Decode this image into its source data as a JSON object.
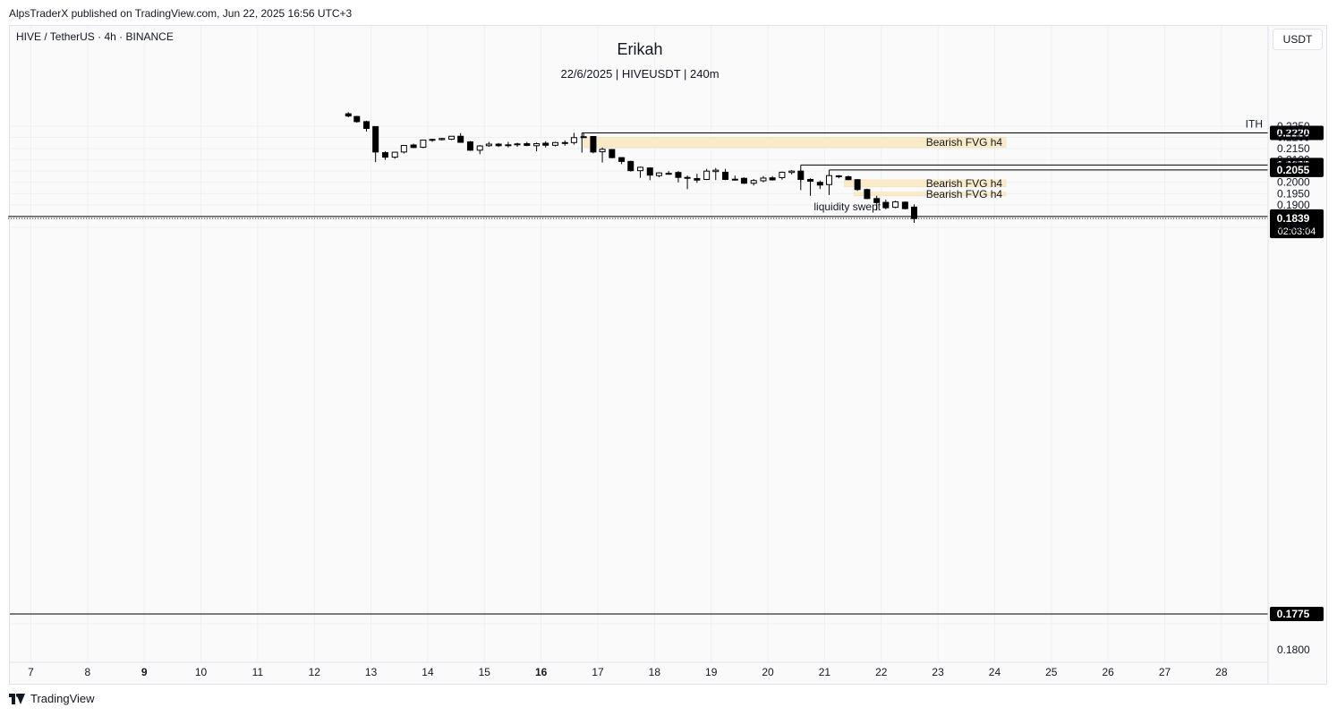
{
  "header": {
    "published_text": "AlpsTraderX published on TradingView.com, Jun 22, 2025 16:56 UTC+3"
  },
  "symbol_info": "HIVE / TetherUS · 4h · BINANCE",
  "chart_title": "Erikah",
  "chart_subtitle": "22/6/2025 | HIVEUSDT | 240m",
  "currency_button": "USDT",
  "footer": {
    "brand": "TradingView"
  },
  "colors": {
    "up_fill": "#ffffff",
    "down_fill": "#000000",
    "wick": "#000000",
    "fvg_fill": "#faebc8",
    "label_bg": "#000000"
  },
  "chart_data": {
    "type": "candlestick",
    "x_axis": {
      "ticks": [
        {
          "label": "7",
          "day": 7,
          "bold": false
        },
        {
          "label": "8",
          "day": 8,
          "bold": false
        },
        {
          "label": "9",
          "day": 9,
          "bold": true
        },
        {
          "label": "10",
          "day": 10,
          "bold": false
        },
        {
          "label": "11",
          "day": 11,
          "bold": false
        },
        {
          "label": "12",
          "day": 12,
          "bold": false
        },
        {
          "label": "13",
          "day": 13,
          "bold": false
        },
        {
          "label": "14",
          "day": 14,
          "bold": false
        },
        {
          "label": "15",
          "day": 15,
          "bold": false
        },
        {
          "label": "16",
          "day": 16,
          "bold": true
        },
        {
          "label": "17",
          "day": 17,
          "bold": false
        },
        {
          "label": "18",
          "day": 18,
          "bold": false
        },
        {
          "label": "19",
          "day": 19,
          "bold": false
        },
        {
          "label": "20",
          "day": 20,
          "bold": false
        },
        {
          "label": "21",
          "day": 21,
          "bold": false
        },
        {
          "label": "22",
          "day": 22,
          "bold": false
        },
        {
          "label": "23",
          "day": 23,
          "bold": false
        },
        {
          "label": "24",
          "day": 24,
          "bold": false
        },
        {
          "label": "25",
          "day": 25,
          "bold": false
        },
        {
          "label": "26",
          "day": 26,
          "bold": false
        },
        {
          "label": "27",
          "day": 27,
          "bold": false
        },
        {
          "label": "28",
          "day": 28,
          "bold": false
        }
      ]
    },
    "y_axis": {
      "upper_ticks": [
        {
          "label": "0.2250",
          "value": 0.225
        },
        {
          "label": "0.2200",
          "value": 0.22
        },
        {
          "label": "0.2150",
          "value": 0.215
        },
        {
          "label": "0.2100",
          "value": 0.21
        },
        {
          "label": "0.2000",
          "value": 0.2
        },
        {
          "label": "0.1950",
          "value": 0.195
        },
        {
          "label": "0.1900",
          "value": 0.19
        },
        {
          "label": "0.1800",
          "value": 0.18
        }
      ],
      "break_tick": {
        "label": "0.1800"
      },
      "grid": true
    },
    "candles": [
      {
        "day": 12.6,
        "o": 0.2305,
        "h": 0.2312,
        "l": 0.229,
        "c": 0.2295
      },
      {
        "day": 12.75,
        "o": 0.2293,
        "h": 0.2296,
        "l": 0.2265,
        "c": 0.227
      },
      {
        "day": 12.92,
        "o": 0.227,
        "h": 0.2274,
        "l": 0.2226,
        "c": 0.224
      },
      {
        "day": 13.08,
        "o": 0.2248,
        "h": 0.225,
        "l": 0.209,
        "c": 0.2135
      },
      {
        "day": 13.25,
        "o": 0.2132,
        "h": 0.2138,
        "l": 0.21,
        "c": 0.2112
      },
      {
        "day": 13.42,
        "o": 0.2112,
        "h": 0.2136,
        "l": 0.2105,
        "c": 0.2134
      },
      {
        "day": 13.58,
        "o": 0.2135,
        "h": 0.2166,
        "l": 0.2128,
        "c": 0.2164
      },
      {
        "day": 13.75,
        "o": 0.2166,
        "h": 0.2172,
        "l": 0.2152,
        "c": 0.2155
      },
      {
        "day": 13.92,
        "o": 0.2156,
        "h": 0.219,
        "l": 0.2152,
        "c": 0.2188
      },
      {
        "day": 14.08,
        "o": 0.2187,
        "h": 0.2194,
        "l": 0.218,
        "c": 0.2191
      },
      {
        "day": 14.25,
        "o": 0.219,
        "h": 0.2198,
        "l": 0.2186,
        "c": 0.2195
      },
      {
        "day": 14.42,
        "o": 0.2192,
        "h": 0.2204,
        "l": 0.2188,
        "c": 0.2205
      },
      {
        "day": 14.58,
        "o": 0.2205,
        "h": 0.2219,
        "l": 0.2176,
        "c": 0.2178
      },
      {
        "day": 14.75,
        "o": 0.218,
        "h": 0.2184,
        "l": 0.214,
        "c": 0.2143
      },
      {
        "day": 14.92,
        "o": 0.2143,
        "h": 0.2166,
        "l": 0.2125,
        "c": 0.2162
      },
      {
        "day": 15.08,
        "o": 0.2163,
        "h": 0.218,
        "l": 0.2158,
        "c": 0.217
      },
      {
        "day": 15.25,
        "o": 0.217,
        "h": 0.2175,
        "l": 0.2157,
        "c": 0.2163
      },
      {
        "day": 15.42,
        "o": 0.2163,
        "h": 0.218,
        "l": 0.2155,
        "c": 0.2167
      },
      {
        "day": 15.58,
        "o": 0.2167,
        "h": 0.2176,
        "l": 0.2158,
        "c": 0.2171
      },
      {
        "day": 15.75,
        "o": 0.2172,
        "h": 0.218,
        "l": 0.2161,
        "c": 0.2164
      },
      {
        "day": 15.92,
        "o": 0.2163,
        "h": 0.2177,
        "l": 0.2138,
        "c": 0.2172
      },
      {
        "day": 16.08,
        "o": 0.2174,
        "h": 0.2183,
        "l": 0.2155,
        "c": 0.2165
      },
      {
        "day": 16.25,
        "o": 0.2165,
        "h": 0.218,
        "l": 0.216,
        "c": 0.2177
      },
      {
        "day": 16.42,
        "o": 0.2176,
        "h": 0.2187,
        "l": 0.2163,
        "c": 0.2177
      },
      {
        "day": 16.58,
        "o": 0.2177,
        "h": 0.222,
        "l": 0.2168,
        "c": 0.2199
      },
      {
        "day": 16.75,
        "o": 0.2199,
        "h": 0.222,
        "l": 0.2198,
        "c": 0.2203
      },
      {
        "day": 16.92,
        "o": 0.2204,
        "h": 0.2206,
        "l": 0.2129,
        "c": 0.2135
      },
      {
        "day": 17.08,
        "o": 0.2136,
        "h": 0.2155,
        "l": 0.2088,
        "c": 0.2147
      },
      {
        "day": 17.25,
        "o": 0.2146,
        "h": 0.2148,
        "l": 0.2107,
        "c": 0.211
      },
      {
        "day": 17.42,
        "o": 0.211,
        "h": 0.2112,
        "l": 0.2081,
        "c": 0.2093
      },
      {
        "day": 17.58,
        "o": 0.2093,
        "h": 0.2096,
        "l": 0.2048,
        "c": 0.2052
      },
      {
        "day": 17.75,
        "o": 0.2052,
        "h": 0.207,
        "l": 0.202,
        "c": 0.2067
      },
      {
        "day": 17.92,
        "o": 0.2064,
        "h": 0.2067,
        "l": 0.201,
        "c": 0.2032
      },
      {
        "day": 18.08,
        "o": 0.203,
        "h": 0.2045,
        "l": 0.2023,
        "c": 0.2042
      },
      {
        "day": 18.25,
        "o": 0.204,
        "h": 0.205,
        "l": 0.2035,
        "c": 0.204
      },
      {
        "day": 18.42,
        "o": 0.2044,
        "h": 0.205,
        "l": 0.2,
        "c": 0.2022
      },
      {
        "day": 18.58,
        "o": 0.2022,
        "h": 0.203,
        "l": 0.197,
        "c": 0.2018
      },
      {
        "day": 18.75,
        "o": 0.2017,
        "h": 0.2038,
        "l": 0.1998,
        "c": 0.201
      },
      {
        "day": 18.92,
        "o": 0.2013,
        "h": 0.206,
        "l": 0.201,
        "c": 0.205
      },
      {
        "day": 19.08,
        "o": 0.2048,
        "h": 0.2064,
        "l": 0.201,
        "c": 0.2054
      },
      {
        "day": 19.25,
        "o": 0.2045,
        "h": 0.206,
        "l": 0.201,
        "c": 0.2013
      },
      {
        "day": 19.42,
        "o": 0.2013,
        "h": 0.203,
        "l": 0.2008,
        "c": 0.2014
      },
      {
        "day": 19.58,
        "o": 0.2018,
        "h": 0.2022,
        "l": 0.1993,
        "c": 0.1996
      },
      {
        "day": 19.75,
        "o": 0.1996,
        "h": 0.2015,
        "l": 0.1986,
        "c": 0.2008
      },
      {
        "day": 19.92,
        "o": 0.2007,
        "h": 0.2028,
        "l": 0.2,
        "c": 0.2019
      },
      {
        "day": 20.08,
        "o": 0.202,
        "h": 0.2028,
        "l": 0.2008,
        "c": 0.2011
      },
      {
        "day": 20.25,
        "o": 0.2021,
        "h": 0.2048,
        "l": 0.2012,
        "c": 0.2045
      },
      {
        "day": 20.42,
        "o": 0.2044,
        "h": 0.2055,
        "l": 0.2035,
        "c": 0.205
      },
      {
        "day": 20.58,
        "o": 0.205,
        "h": 0.2055,
        "l": 0.2005,
        "c": 0.2013
      },
      {
        "day": 20.75,
        "o": 0.2013,
        "h": 0.2018,
        "l": 0.194,
        "c": 0.2005
      },
      {
        "day": 20.92,
        "o": 0.2,
        "h": 0.2008,
        "l": 0.197,
        "c": 0.1988
      },
      {
        "day": 21.08,
        "o": 0.199,
        "h": 0.2032,
        "l": 0.1988,
        "c": 0.203
      },
      {
        "day": 21.25,
        "o": 0.2029,
        "h": 0.2032,
        "l": 0.2018,
        "c": 0.2025
      },
      {
        "day": 21.42,
        "o": 0.2025,
        "h": 0.203,
        "l": 0.201,
        "c": 0.2012
      },
      {
        "day": 21.58,
        "o": 0.2012,
        "h": 0.2015,
        "l": 0.1962,
        "c": 0.1968
      },
      {
        "day": 21.75,
        "o": 0.1968,
        "h": 0.1972,
        "l": 0.1925,
        "c": 0.1928
      },
      {
        "day": 21.92,
        "o": 0.1928,
        "h": 0.194,
        "l": 0.1875,
        "c": 0.191
      },
      {
        "day": 22.08,
        "o": 0.1911,
        "h": 0.1923,
        "l": 0.188,
        "c": 0.1887
      },
      {
        "day": 22.25,
        "o": 0.1889,
        "h": 0.1918,
        "l": 0.1885,
        "c": 0.1913
      },
      {
        "day": 22.42,
        "o": 0.1912,
        "h": 0.1915,
        "l": 0.188,
        "c": 0.1883
      },
      {
        "day": 22.58,
        "o": 0.189,
        "h": 0.1902,
        "l": 0.182,
        "c": 0.1839
      }
    ],
    "levels": [
      {
        "value": 0.222,
        "label": "0.2220",
        "start_day": 16.72,
        "annotation": "ITH",
        "style": "solid"
      },
      {
        "value": 0.2077,
        "label": "0.2077",
        "start_day": 20.58,
        "annotation": "",
        "style": "solid"
      },
      {
        "value": 0.2055,
        "label": "0.2055",
        "start_day": 21.08,
        "annotation": "",
        "style": "solid"
      },
      {
        "value": 0.1848,
        "label": "0.1848",
        "start_day": 6.6,
        "annotation": "liquidity swept",
        "style": "solid"
      },
      {
        "value": 0.1839,
        "label": "0.1839",
        "start_day": 6.6,
        "annotation": "",
        "style": "dotted",
        "countdown": "02:03:04"
      }
    ],
    "lower_level": {
      "label": "0.1775"
    },
    "zones": [
      {
        "label": "Bearish FVG h4",
        "top": 0.22,
        "bottom": 0.2155,
        "start_day": 16.75,
        "end_day": 24.2
      },
      {
        "label": "Bearish FVG h4",
        "top": 0.2011,
        "bottom": 0.198,
        "start_day": 21.35,
        "end_day": 24.2
      },
      {
        "label": "Bearish FVG h4",
        "top": 0.1956,
        "bottom": 0.194,
        "start_day": 21.52,
        "end_day": 24.2
      }
    ]
  }
}
